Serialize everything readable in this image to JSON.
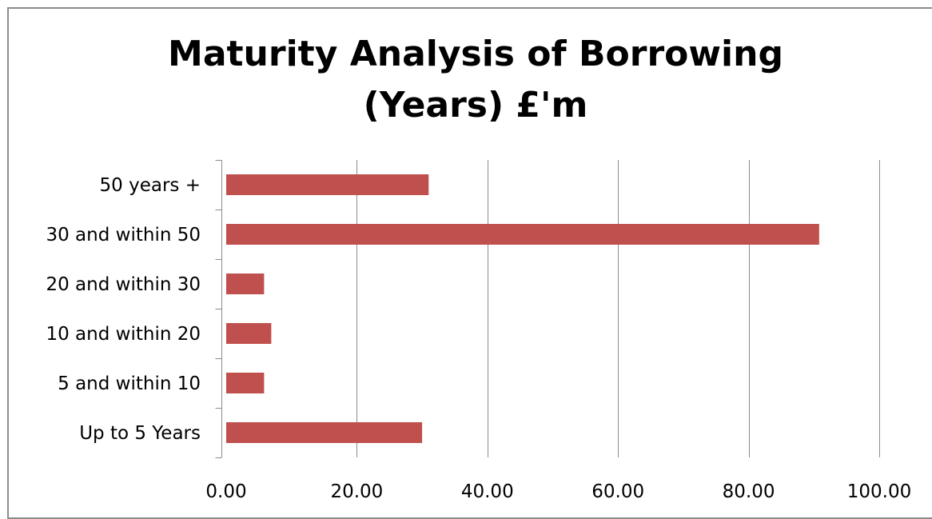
{
  "chart_data": {
    "type": "bar",
    "orientation": "horizontal",
    "title": "Maturity Analysis of Borrowing\n(Years) £'m",
    "xlabel": "",
    "ylabel": "",
    "categories": [
      "50 years +",
      "30 and within 50",
      "20 and within 30",
      "10 and within 20",
      "5 and within 10",
      "Up to 5 Years"
    ],
    "values": [
      31.0,
      90.8,
      5.8,
      6.9,
      5.8,
      30.0
    ],
    "xlim": [
      0,
      100
    ],
    "ticks": [
      "0.00",
      "20.00",
      "40.00",
      "60.00",
      "80.00",
      "100.00"
    ],
    "tick_values": [
      0,
      20,
      40,
      60,
      80,
      100
    ],
    "grid": "vertical major gridlines",
    "legend": "none",
    "colors": {
      "bar": "#c0504d",
      "grid": "#8c8c8c",
      "axis": "#8c8c8c",
      "frame": "#8c8c8c"
    }
  }
}
